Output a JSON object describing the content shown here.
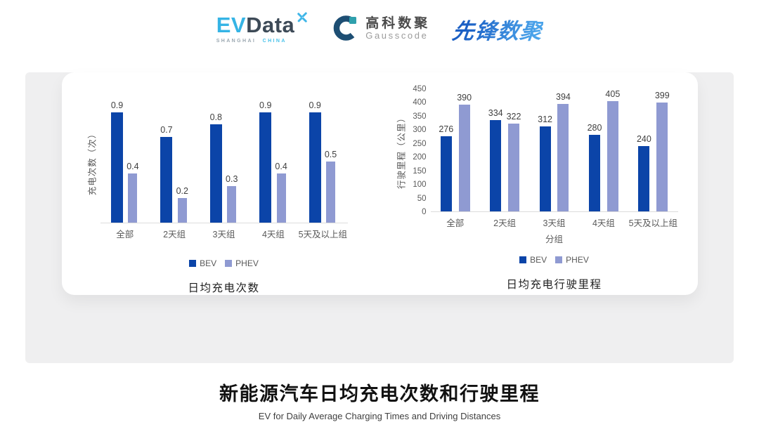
{
  "header": {
    "evdata_logo": {
      "part_ev": "EV",
      "part_data": "Data",
      "tagline_shanghai": "SHANGHAI",
      "tagline_china": "CHINA"
    },
    "gausscode_logo": {
      "name_cn": "高科数聚",
      "name_en": "Gausscode"
    },
    "pioneer_logo": {
      "name": "先锋数聚"
    }
  },
  "chart_data": [
    {
      "type": "bar",
      "title": "日均充电次数",
      "categories": [
        "全部",
        "2天组",
        "3天组",
        "4天组",
        "5天及以上组"
      ],
      "series": [
        {
          "name": "BEV",
          "color": "#0b44a8",
          "values": [
            0.9,
            0.7,
            0.8,
            0.9,
            0.9
          ]
        },
        {
          "name": "PHEV",
          "color": "#8f9ad2",
          "values": [
            0.4,
            0.2,
            0.3,
            0.4,
            0.5
          ]
        }
      ],
      "xlabel": "",
      "ylabel": "充电次数（次）",
      "ylim": [
        0,
        1
      ],
      "yticks": [],
      "grid": false,
      "data_labels": true,
      "legend_position": "bottom"
    },
    {
      "type": "bar",
      "title": "日均充电行驶里程",
      "categories": [
        "全部",
        "2天组",
        "3天组",
        "4天组",
        "5天及以上组"
      ],
      "series": [
        {
          "name": "BEV",
          "color": "#0b44a8",
          "values": [
            276,
            334,
            312,
            280,
            240
          ]
        },
        {
          "name": "PHEV",
          "color": "#8f9ad2",
          "values": [
            390,
            322,
            394,
            405,
            399
          ]
        }
      ],
      "xlabel": "分组",
      "ylabel": "行驶里程（公里）",
      "ylim": [
        0,
        450
      ],
      "yticks": [
        0,
        50,
        100,
        150,
        200,
        250,
        300,
        350,
        400,
        450
      ],
      "grid": false,
      "data_labels": true,
      "legend_position": "bottom"
    }
  ],
  "footer": {
    "title": "新能源汽车日均充电次数和行驶里程",
    "subtitle": "EV for Daily Average Charging Times and Driving Distances"
  },
  "colors": {
    "bev": "#0b44a8",
    "phev": "#8f9ad2",
    "panel_background": "#efeff0",
    "card_background": "#ffffff",
    "axis_text": "#595959",
    "evdata_blue": "#35b4e5",
    "evdata_dark": "#3d4a57",
    "gausscode_dark": "#1d4e73",
    "gausscode_teal": "#2fa0ad",
    "pioneer_blue_start": "#1b5fc4",
    "pioneer_blue_end": "#4aa3ea"
  }
}
